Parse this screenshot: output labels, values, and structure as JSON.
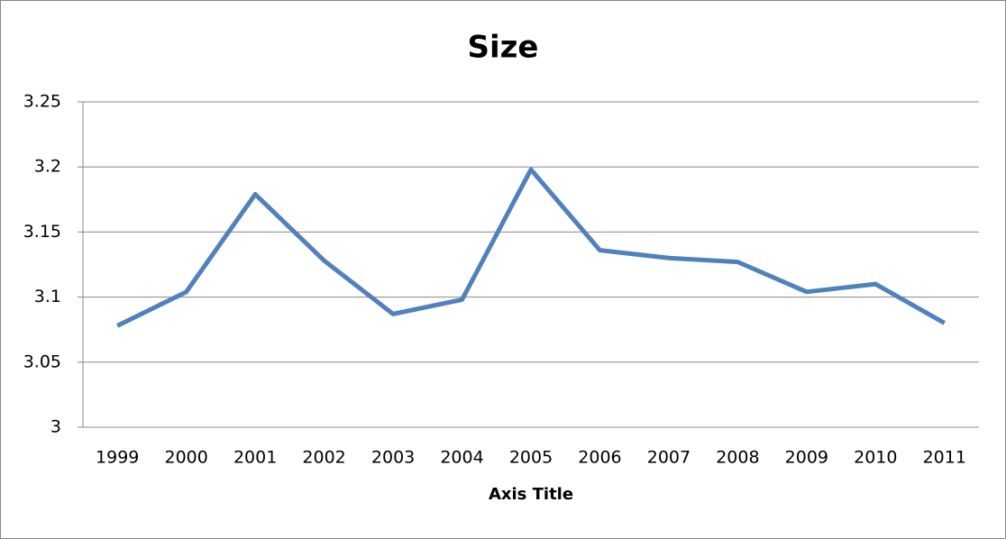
{
  "chart_data": {
    "type": "line",
    "title": "Size",
    "x_axis_title": "Axis Title",
    "categories": [
      "1999",
      "2000",
      "2001",
      "2002",
      "2003",
      "2004",
      "2005",
      "2006",
      "2007",
      "2008",
      "2009",
      "2010",
      "2011"
    ],
    "series": [
      {
        "color": "#4f81bd",
        "values": [
          3.078,
          3.104,
          3.179,
          3.128,
          3.087,
          3.098,
          3.198,
          3.136,
          3.13,
          3.127,
          3.104,
          3.11,
          3.08
        ]
      }
    ],
    "ylim": [
      3,
      3.25
    ],
    "yticks": [
      3,
      3.05,
      3.1,
      3.15,
      3.2,
      3.25
    ],
    "grid": true
  }
}
